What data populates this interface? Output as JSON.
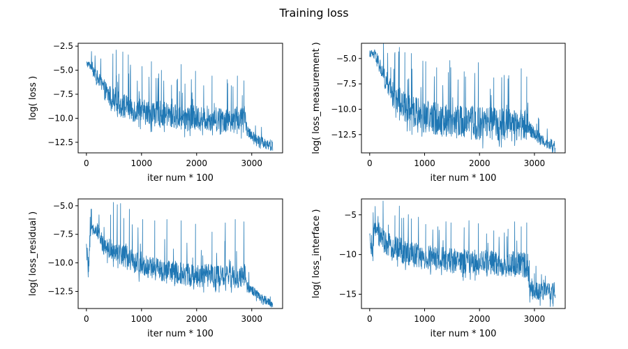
{
  "figure": {
    "title": "Training loss"
  },
  "colors": {
    "series": "#1f77b4"
  },
  "chart_data": [
    {
      "type": "line",
      "xlabel": "iter num * 100",
      "ylabel": "log( loss )",
      "xlim": [
        -150,
        3560
      ],
      "ylim": [
        -13.6,
        -2.2
      ],
      "xticks": [
        0,
        1000,
        2000,
        3000
      ],
      "xtick_labels": [
        "0",
        "1000",
        "2000",
        "3000"
      ],
      "yticks": [
        -12.5,
        -10.0,
        -7.5,
        -5.0,
        -2.5
      ],
      "ytick_labels": [
        "−12.5",
        "−10.0",
        "−7.5",
        "−5.0",
        "−2.5"
      ],
      "grid": false,
      "series": [
        {
          "color": "#1f77b4",
          "x": [
            0,
            100,
            200,
            300,
            400,
            500,
            600,
            700,
            800,
            900,
            1000,
            1200,
            1400,
            1600,
            1800,
            2000,
            2200,
            2400,
            2600,
            2800,
            2880,
            2920,
            3000,
            3100,
            3200,
            3300,
            3380
          ],
          "y": [
            -4.3,
            -4.6,
            -5.8,
            -6.8,
            -7.6,
            -8.0,
            -8.5,
            -8.8,
            -9.0,
            -9.2,
            -9.3,
            -9.5,
            -9.6,
            -9.8,
            -9.9,
            -10.0,
            -10.0,
            -10.1,
            -10.1,
            -10.1,
            -10.0,
            -11.3,
            -11.8,
            -12.2,
            -12.5,
            -12.7,
            -12.9
          ],
          "noise_band": [
            0.3,
            0.5,
            0.8,
            1.0,
            1.1,
            1.2,
            1.2,
            1.3,
            1.3,
            1.3,
            1.3,
            1.3,
            1.3,
            1.3,
            1.3,
            1.3,
            1.3,
            1.3,
            1.3,
            1.3,
            1.3,
            0.6,
            0.5,
            0.5,
            0.6,
            0.6,
            0.6
          ],
          "spikes": [
            [
              480,
              -3.3
            ],
            [
              540,
              -2.9
            ],
            [
              660,
              -3.1
            ],
            [
              760,
              -3.4
            ],
            [
              1010,
              -4.6
            ],
            [
              1180,
              -4.1
            ],
            [
              1360,
              -5.0
            ],
            [
              1720,
              -4.4
            ],
            [
              1980,
              -5.1
            ],
            [
              2280,
              -5.6
            ],
            [
              2560,
              -6.8
            ],
            [
              2740,
              -5.6
            ],
            [
              2860,
              -6.1
            ]
          ]
        }
      ]
    },
    {
      "type": "line",
      "xlabel": "iter num * 100",
      "ylabel": "log( loss_measurement )",
      "xlim": [
        -150,
        3560
      ],
      "ylim": [
        -14.3,
        -3.5
      ],
      "xticks": [
        0,
        1000,
        2000,
        3000
      ],
      "xtick_labels": [
        "0",
        "1000",
        "2000",
        "3000"
      ],
      "yticks": [
        -12.5,
        -10.0,
        -7.5,
        -5.0
      ],
      "ytick_labels": [
        "−12.5",
        "−10.0",
        "−7.5",
        "−5.0"
      ],
      "grid": false,
      "series": [
        {
          "color": "#1f77b4",
          "x": [
            0,
            100,
            200,
            300,
            400,
            500,
            600,
            700,
            800,
            900,
            1000,
            1200,
            1400,
            1600,
            1800,
            2000,
            2200,
            2400,
            2600,
            2800,
            2880,
            2920,
            3000,
            3100,
            3200,
            3300,
            3380
          ],
          "y": [
            -4.5,
            -4.7,
            -6.0,
            -7.3,
            -8.4,
            -9.0,
            -9.5,
            -10.0,
            -10.3,
            -10.5,
            -10.7,
            -10.9,
            -11.1,
            -11.2,
            -11.3,
            -11.4,
            -11.4,
            -11.5,
            -11.5,
            -11.5,
            -11.4,
            -12.0,
            -12.4,
            -12.9,
            -13.2,
            -13.5,
            -13.8
          ],
          "noise_band": [
            0.3,
            0.6,
            0.9,
            1.1,
            1.3,
            1.4,
            1.5,
            1.5,
            1.5,
            1.6,
            1.6,
            1.6,
            1.6,
            1.6,
            1.6,
            1.6,
            1.6,
            1.6,
            1.6,
            1.6,
            1.6,
            0.7,
            0.6,
            0.6,
            0.6,
            0.6,
            0.6
          ],
          "spikes": [
            [
              460,
              -4.4
            ],
            [
              540,
              -3.9
            ],
            [
              640,
              -4.4
            ],
            [
              760,
              -4.5
            ],
            [
              1020,
              -5.3
            ],
            [
              1220,
              -5.9
            ],
            [
              1460,
              -5.2
            ],
            [
              1720,
              -6.3
            ],
            [
              1980,
              -5.4
            ],
            [
              2260,
              -6.9
            ],
            [
              2520,
              -7.0
            ],
            [
              2760,
              -6.0
            ],
            [
              2860,
              -6.8
            ]
          ]
        }
      ]
    },
    {
      "type": "line",
      "xlabel": "iter num * 100",
      "ylabel": "log( loss_residual )",
      "xlim": [
        -150,
        3560
      ],
      "ylim": [
        -14.0,
        -4.4
      ],
      "xticks": [
        0,
        1000,
        2000,
        3000
      ],
      "xtick_labels": [
        "0",
        "1000",
        "2000",
        "3000"
      ],
      "yticks": [
        -12.5,
        -10.0,
        -7.5,
        -5.0
      ],
      "ytick_labels": [
        "−12.5",
        "−10.0",
        "−7.5",
        "−5.0"
      ],
      "grid": false,
      "series": [
        {
          "color": "#1f77b4",
          "x": [
            0,
            40,
            80,
            120,
            200,
            300,
            400,
            500,
            600,
            700,
            800,
            1000,
            1200,
            1400,
            1600,
            1800,
            2000,
            2200,
            2400,
            2600,
            2800,
            2880,
            2920,
            3000,
            3100,
            3200,
            3300,
            3380
          ],
          "y": [
            -8.8,
            -10.4,
            -7.3,
            -6.9,
            -7.2,
            -8.4,
            -8.7,
            -8.9,
            -9.1,
            -9.4,
            -9.7,
            -10.2,
            -10.5,
            -10.7,
            -10.9,
            -11.0,
            -11.1,
            -11.1,
            -11.2,
            -11.2,
            -11.2,
            -11.1,
            -12.0,
            -12.4,
            -12.8,
            -13.1,
            -13.4,
            -13.7
          ],
          "noise_band": [
            0.8,
            0.8,
            0.6,
            0.5,
            0.6,
            0.8,
            0.9,
            1.0,
            1.0,
            1.0,
            1.0,
            1.0,
            1.0,
            1.0,
            1.0,
            1.0,
            1.0,
            1.0,
            1.0,
            1.0,
            1.0,
            1.0,
            0.5,
            0.4,
            0.4,
            0.4,
            0.3,
            0.3
          ],
          "spikes": [
            [
              440,
              -5.8
            ],
            [
              490,
              -4.7
            ],
            [
              560,
              -4.9
            ],
            [
              620,
              -4.8
            ],
            [
              680,
              -6.1
            ],
            [
              780,
              -5.3
            ],
            [
              1020,
              -6.2
            ],
            [
              1240,
              -6.3
            ],
            [
              1460,
              -6.2
            ],
            [
              1720,
              -6.3
            ],
            [
              1980,
              -6.6
            ],
            [
              2280,
              -7.3
            ],
            [
              2520,
              -6.5
            ],
            [
              2700,
              -6.2
            ],
            [
              2860,
              -6.4
            ]
          ]
        }
      ]
    },
    {
      "type": "line",
      "xlabel": "iter num * 100",
      "ylabel": "log( loss_interface )",
      "xlim": [
        -150,
        3560
      ],
      "ylim": [
        -16.8,
        -3.0
      ],
      "xticks": [
        0,
        1000,
        2000,
        3000
      ],
      "xtick_labels": [
        "0",
        "1000",
        "2000",
        "3000"
      ],
      "yticks": [
        -15,
        -10,
        -5
      ],
      "ytick_labels": [
        "−15",
        "−10",
        "−5"
      ],
      "grid": false,
      "series": [
        {
          "color": "#1f77b4",
          "x": [
            0,
            40,
            80,
            120,
            200,
            300,
            400,
            500,
            600,
            700,
            800,
            1000,
            1200,
            1400,
            1600,
            1800,
            2000,
            2200,
            2400,
            2600,
            2800,
            2880,
            2920,
            3000,
            3100,
            3200,
            3300,
            3380
          ],
          "y": [
            -8.2,
            -9.8,
            -7.0,
            -7.2,
            -7.8,
            -8.6,
            -9.0,
            -9.3,
            -9.6,
            -9.8,
            -10.0,
            -10.3,
            -10.5,
            -10.7,
            -10.8,
            -10.9,
            -11.0,
            -11.1,
            -11.2,
            -11.2,
            -11.3,
            -11.3,
            -14.5,
            -14.5,
            -14.6,
            -14.6,
            -14.7,
            -14.7
          ],
          "noise_band": [
            1.0,
            1.0,
            1.2,
            1.3,
            1.4,
            1.5,
            1.5,
            1.6,
            1.6,
            1.6,
            1.6,
            1.6,
            1.6,
            1.6,
            1.6,
            1.6,
            1.6,
            1.6,
            1.6,
            1.6,
            1.6,
            1.6,
            1.2,
            1.2,
            1.2,
            1.2,
            1.2,
            1.2
          ],
          "spikes": [
            [
              60,
              -10.8
            ],
            [
              460,
              -5.1
            ],
            [
              540,
              -3.9
            ],
            [
              620,
              -5.4
            ],
            [
              760,
              -5.5
            ],
            [
              1020,
              -6.2
            ],
            [
              1240,
              -6.5
            ],
            [
              1480,
              -6.0
            ],
            [
              1720,
              -6.6
            ],
            [
              1980,
              -6.1
            ],
            [
              2260,
              -7.0
            ],
            [
              2520,
              -6.8
            ],
            [
              2760,
              -6.5
            ],
            [
              2860,
              -6.0
            ],
            [
              3000,
              -12.4
            ],
            [
              3200,
              -12.7
            ]
          ]
        }
      ]
    }
  ]
}
